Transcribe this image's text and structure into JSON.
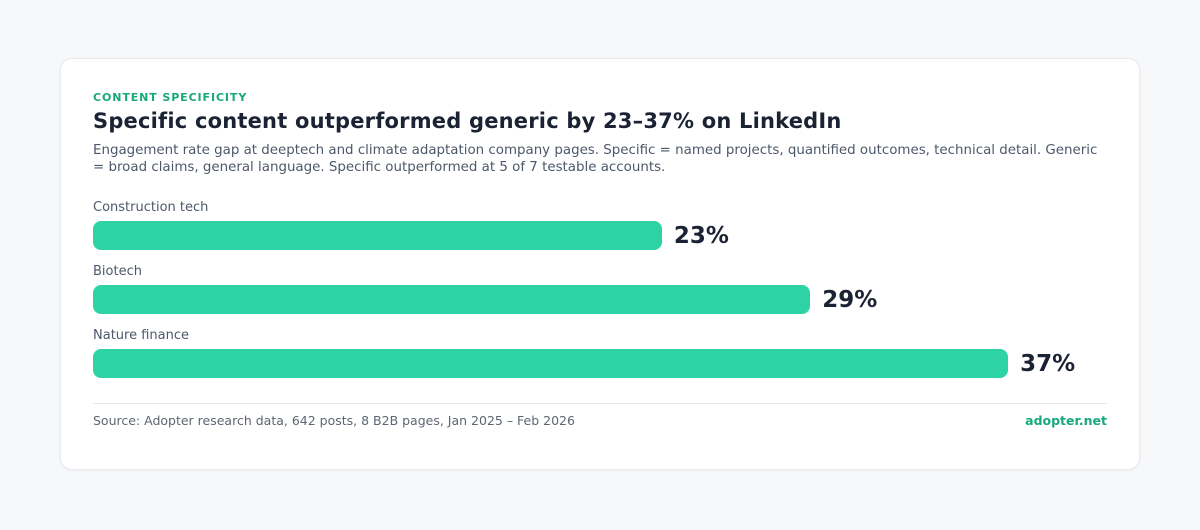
{
  "page": {
    "background": "#f7f8fa"
  },
  "card": {
    "eyebrow": "CONTENT SPECIFICITY",
    "title": "Specific content outperformed generic by 23–37% on LinkedIn",
    "subtitle": "Engagement rate gap at deeptech and climate adaptation company pages. Specific = named projects, quantified outcomes, technical detail. Generic = broad claims, general language. Specific outperformed at 5 of 7 testable accounts.",
    "footer": {
      "source": "Source: Adopter research data, 642 posts, 8 B2B pages, Jan 2025 – Feb 2026",
      "link": "adopter.net"
    }
  },
  "colors": {
    "bar_green": "#2ed3a5",
    "eyebrow_green": "#17a87b",
    "title_dark": "#1b2233",
    "label_gray": "#4d5869",
    "card_background": "#ffffff",
    "page_background": "#f7f8fa"
  },
  "chart_data": {
    "type": "bar",
    "orientation": "horizontal",
    "title": "Specific content outperformed generic by 23–37% on LinkedIn",
    "categories": [
      "Construction tech",
      "Biotech",
      "Nature finance"
    ],
    "values": [
      23,
      29,
      37
    ],
    "value_labels": [
      "23%",
      "29%",
      "37%"
    ],
    "xlabel": "",
    "ylabel": "",
    "xlim": [
      0,
      41
    ],
    "grid": false,
    "legend": false,
    "bar_color": "#2ed3a5",
    "value_label_position": "right-of-bar"
  }
}
